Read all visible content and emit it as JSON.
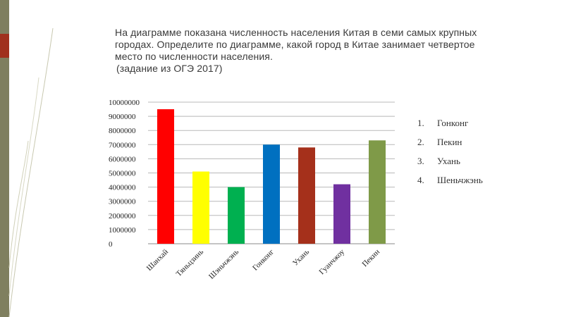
{
  "question": {
    "lines": [
      "На диаграмме показана численность населения Китая в семи самых крупных",
      "городах. Определите по диаграмме, какой город в Китае занимает четвертое",
      "место по численности населения."
    ],
    "source": "(задание из ОГЭ 2017)"
  },
  "options": [
    {
      "num": "1.",
      "label": "Гонконг"
    },
    {
      "num": "2.",
      "label": "Пекин"
    },
    {
      "num": "3.",
      "label": "Ухань"
    },
    {
      "num": "4.",
      "label": "Шеньчжэнь"
    }
  ],
  "chart_data": {
    "type": "bar",
    "categories": [
      "Шанхай",
      "Тяньцзинь",
      "Шэньчжэнь",
      "Гонконг",
      "Ухань",
      "Гуанчжоу",
      "Пекин"
    ],
    "values": [
      9500000,
      5100000,
      4000000,
      7000000,
      6800000,
      4200000,
      7300000
    ],
    "colors": [
      "#ff0000",
      "#ffff00",
      "#00b050",
      "#0070c0",
      "#a5301b",
      "#7030a0",
      "#7f9a48"
    ],
    "yticks": [
      "0",
      "1000000",
      "2000000",
      "3000000",
      "4000000",
      "5000000",
      "6000000",
      "7000000",
      "8000000",
      "9000000",
      "10000000"
    ],
    "ylim": [
      0,
      10000000
    ],
    "grid": true,
    "legend": "none"
  }
}
